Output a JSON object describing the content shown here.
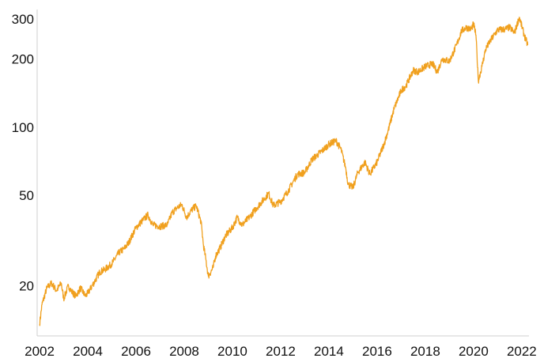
{
  "chart_data": {
    "type": "line",
    "title": "",
    "xlabel": "",
    "ylabel": "",
    "y_scale": "log",
    "grid": false,
    "legend": "none",
    "xlim": [
      2001.9,
      2022.3
    ],
    "ylim": [
      12,
      330
    ],
    "x_ticks": [
      2002,
      2004,
      2006,
      2008,
      2010,
      2012,
      2014,
      2016,
      2018,
      2020,
      2022
    ],
    "x_tick_labels": [
      "2002",
      "2004",
      "2006",
      "2008",
      "2010",
      "2012",
      "2014",
      "2016",
      "2018",
      "2020",
      "2022"
    ],
    "y_ticks": [
      20,
      50,
      100,
      200,
      300
    ],
    "y_tick_labels": [
      "20",
      "50",
      "100",
      "200",
      "300"
    ],
    "series": [
      {
        "color": "#F0A01E",
        "x": [
          2002.0,
          2002.1,
          2002.3,
          2002.5,
          2002.7,
          2002.9,
          2003.0,
          2003.2,
          2003.3,
          2003.5,
          2003.7,
          2003.9,
          2004.0,
          2004.3,
          2004.5,
          2004.7,
          2005.0,
          2005.3,
          2005.5,
          2005.7,
          2006.0,
          2006.3,
          2006.5,
          2006.7,
          2007.0,
          2007.3,
          2007.5,
          2007.7,
          2007.9,
          2008.1,
          2008.3,
          2008.5,
          2008.7,
          2008.8,
          2008.9,
          2009.0,
          2009.2,
          2009.3,
          2009.5,
          2009.7,
          2010.0,
          2010.2,
          2010.4,
          2010.7,
          2011.0,
          2011.3,
          2011.5,
          2011.7,
          2012.0,
          2012.3,
          2012.5,
          2012.7,
          2013.0,
          2013.3,
          2013.5,
          2013.8,
          2014.0,
          2014.3,
          2014.5,
          2014.7,
          2014.8,
          2015.0,
          2015.2,
          2015.5,
          2015.7,
          2016.0,
          2016.3,
          2016.5,
          2016.7,
          2017.0,
          2017.2,
          2017.5,
          2017.7,
          2018.0,
          2018.3,
          2018.5,
          2018.7,
          2019.0,
          2019.3,
          2019.5,
          2019.7,
          2019.9,
          2020.0,
          2020.1,
          2020.2,
          2020.35,
          2020.5,
          2020.7,
          2021.0,
          2021.3,
          2021.5,
          2021.7,
          2021.9,
          2022.1,
          2022.25
        ],
        "y": [
          13.5,
          16.5,
          19.5,
          20.5,
          19.0,
          20.5,
          17.5,
          20.0,
          19.0,
          18.0,
          19.5,
          18.0,
          18.5,
          21.0,
          23.0,
          23.5,
          25.0,
          28.0,
          29.0,
          31.0,
          36.0,
          39.0,
          41.0,
          37.0,
          36.5,
          37.0,
          42.0,
          44.0,
          45.5,
          40.0,
          43.0,
          45.0,
          38.0,
          30.0,
          26.0,
          22.0,
          24.0,
          27.0,
          29.5,
          33.0,
          36.0,
          40.0,
          37.0,
          40.0,
          44.0,
          48.0,
          51.0,
          45.0,
          47.0,
          52.0,
          57.0,
          62.0,
          63.0,
          72.0,
          75.0,
          80.0,
          84.0,
          87.0,
          80.0,
          66.0,
          56.0,
          54.0,
          63.0,
          70.0,
          62.0,
          70.0,
          85.0,
          100.0,
          120.0,
          145.0,
          152.0,
          178.0,
          175.0,
          185.0,
          190.0,
          175.0,
          200.0,
          195.0,
          230.0,
          265.0,
          275.0,
          270.0,
          285.0,
          255.0,
          160.0,
          185.0,
          220.0,
          240.0,
          268.0,
          270.0,
          275.0,
          260.0,
          305.0,
          255.0,
          230.0
        ]
      }
    ]
  }
}
